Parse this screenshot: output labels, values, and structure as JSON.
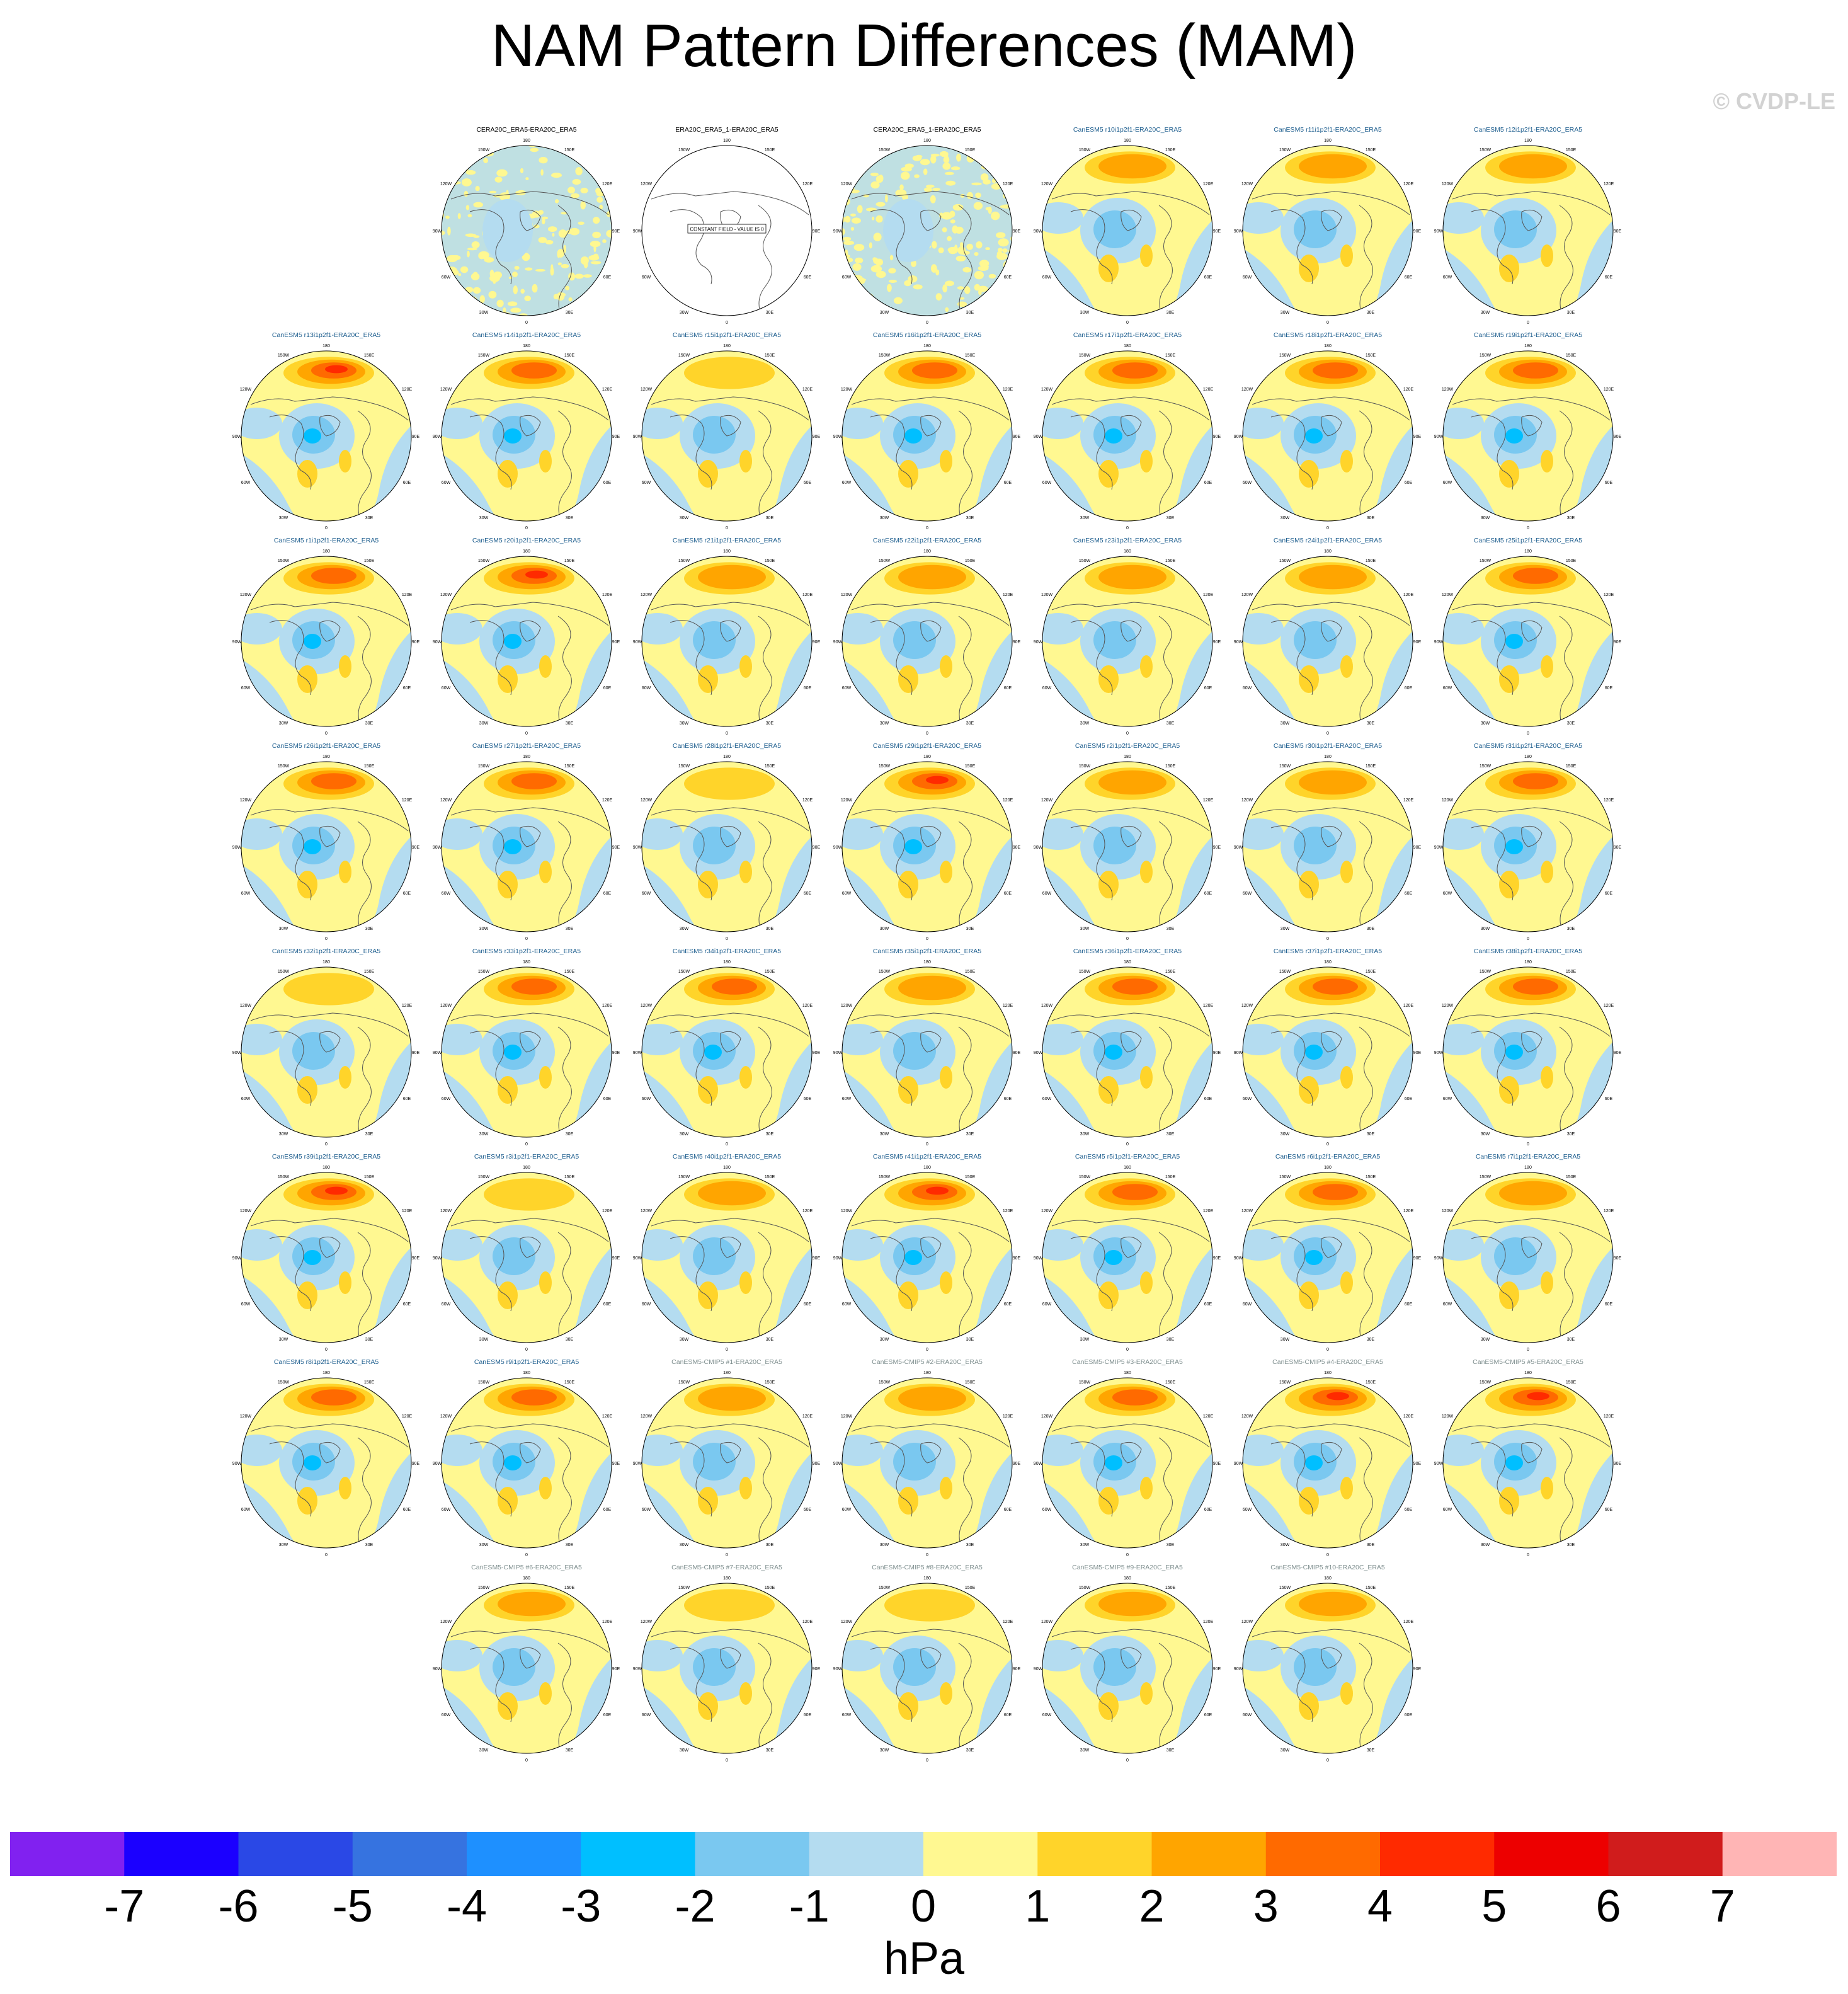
{
  "title": "NAM Pattern Differences (MAM)",
  "watermark": "© CVDP-LE",
  "colorbar": {
    "units": "hPa",
    "labels": [
      "-7",
      "-6",
      "-5",
      "-4",
      "-3",
      "-2",
      "-1",
      "0",
      "1",
      "2",
      "3",
      "4",
      "5",
      "6",
      "7"
    ],
    "colors": [
      "#8121f0",
      "#1b00ff",
      "#2a48e6",
      "#3673e0",
      "#1e90ff",
      "#00bfff",
      "#7ac8f0",
      "#b4dcf0",
      "#fff891",
      "#ffd42a",
      "#ffa500",
      "#ff6a00",
      "#ff2a00",
      "#ed0000",
      "#d01c1c",
      "#ffb5b5"
    ]
  },
  "map_labels": {
    "top": "180",
    "upper_left": "150W",
    "upper_right": "150E",
    "left_upper": "120W",
    "right_upper": "120E",
    "left_mid": "90W",
    "right_mid": "90E",
    "left_lower": "60W",
    "right_lower": "60E",
    "lower_left": "30W",
    "lower_right": "30E",
    "bottom": "0"
  },
  "constant_field_note": "CONSTANT FIELD - VALUE IS 0",
  "panel_title_colors": {
    "obs": "#000000",
    "model": "#1f5f8f",
    "cmip5": "#7f8f8f"
  },
  "panels": [
    {
      "title": "CERA20C_ERA5-ERA20C_ERA5",
      "kind": "obs",
      "variant": "noisy",
      "intensity": 0
    },
    {
      "title": "ERA20C_ERA5_1-ERA20C_ERA5",
      "kind": "obs",
      "variant": "constant",
      "intensity": 0
    },
    {
      "title": "CERA20C_ERA5_1-ERA20C_ERA5",
      "kind": "obs",
      "variant": "noisy",
      "intensity": 0
    },
    {
      "title": "CanESM5 r10i1p2f1-ERA20C_ERA5",
      "kind": "model",
      "variant": "normal",
      "intensity": 2
    },
    {
      "title": "CanESM5 r11i1p2f1-ERA20C_ERA5",
      "kind": "model",
      "variant": "normal",
      "intensity": 2
    },
    {
      "title": "CanESM5 r12i1p2f1-ERA20C_ERA5",
      "kind": "model",
      "variant": "normal",
      "intensity": 2
    },
    {
      "title": "CanESM5 r13i1p2f1-ERA20C_ERA5",
      "kind": "model",
      "variant": "normal",
      "intensity": 4
    },
    {
      "title": "CanESM5 r14i1p2f1-ERA20C_ERA5",
      "kind": "model",
      "variant": "normal",
      "intensity": 3
    },
    {
      "title": "CanESM5 r15i1p2f1-ERA20C_ERA5",
      "kind": "model",
      "variant": "normal",
      "intensity": 1
    },
    {
      "title": "CanESM5 r16i1p2f1-ERA20C_ERA5",
      "kind": "model",
      "variant": "normal",
      "intensity": 3
    },
    {
      "title": "CanESM5 r17i1p2f1-ERA20C_ERA5",
      "kind": "model",
      "variant": "normal",
      "intensity": 3
    },
    {
      "title": "CanESM5 r18i1p2f1-ERA20C_ERA5",
      "kind": "model",
      "variant": "normal",
      "intensity": 3
    },
    {
      "title": "CanESM5 r19i1p2f1-ERA20C_ERA5",
      "kind": "model",
      "variant": "normal",
      "intensity": 3
    },
    {
      "title": "CanESM5 r1i1p2f1-ERA20C_ERA5",
      "kind": "model",
      "variant": "normal",
      "intensity": 3
    },
    {
      "title": "CanESM5 r20i1p2f1-ERA20C_ERA5",
      "kind": "model",
      "variant": "normal",
      "intensity": 4
    },
    {
      "title": "CanESM5 r21i1p2f1-ERA20C_ERA5",
      "kind": "model",
      "variant": "normal",
      "intensity": 2
    },
    {
      "title": "CanESM5 r22i1p2f1-ERA20C_ERA5",
      "kind": "model",
      "variant": "normal",
      "intensity": 2
    },
    {
      "title": "CanESM5 r23i1p2f1-ERA20C_ERA5",
      "kind": "model",
      "variant": "normal",
      "intensity": 2
    },
    {
      "title": "CanESM5 r24i1p2f1-ERA20C_ERA5",
      "kind": "model",
      "variant": "normal",
      "intensity": 2
    },
    {
      "title": "CanESM5 r25i1p2f1-ERA20C_ERA5",
      "kind": "model",
      "variant": "normal",
      "intensity": 3
    },
    {
      "title": "CanESM5 r26i1p2f1-ERA20C_ERA5",
      "kind": "model",
      "variant": "normal",
      "intensity": 3
    },
    {
      "title": "CanESM5 r27i1p2f1-ERA20C_ERA5",
      "kind": "model",
      "variant": "normal",
      "intensity": 3
    },
    {
      "title": "CanESM5 r28i1p2f1-ERA20C_ERA5",
      "kind": "model",
      "variant": "normal",
      "intensity": 1
    },
    {
      "title": "CanESM5 r29i1p2f1-ERA20C_ERA5",
      "kind": "model",
      "variant": "normal",
      "intensity": 4
    },
    {
      "title": "CanESM5 r2i1p2f1-ERA20C_ERA5",
      "kind": "model",
      "variant": "normal",
      "intensity": 2
    },
    {
      "title": "CanESM5 r30i1p2f1-ERA20C_ERA5",
      "kind": "model",
      "variant": "normal",
      "intensity": 2
    },
    {
      "title": "CanESM5 r31i1p2f1-ERA20C_ERA5",
      "kind": "model",
      "variant": "normal",
      "intensity": 3
    },
    {
      "title": "CanESM5 r32i1p2f1-ERA20C_ERA5",
      "kind": "model",
      "variant": "normal",
      "intensity": 1
    },
    {
      "title": "CanESM5 r33i1p2f1-ERA20C_ERA5",
      "kind": "model",
      "variant": "normal",
      "intensity": 3
    },
    {
      "title": "CanESM5 r34i1p2f1-ERA20C_ERA5",
      "kind": "model",
      "variant": "normal",
      "intensity": 3
    },
    {
      "title": "CanESM5 r35i1p2f1-ERA20C_ERA5",
      "kind": "model",
      "variant": "normal",
      "intensity": 2
    },
    {
      "title": "CanESM5 r36i1p2f1-ERA20C_ERA5",
      "kind": "model",
      "variant": "normal",
      "intensity": 3
    },
    {
      "title": "CanESM5 r37i1p2f1-ERA20C_ERA5",
      "kind": "model",
      "variant": "normal",
      "intensity": 3
    },
    {
      "title": "CanESM5 r38i1p2f1-ERA20C_ERA5",
      "kind": "model",
      "variant": "normal",
      "intensity": 3
    },
    {
      "title": "CanESM5 r39i1p2f1-ERA20C_ERA5",
      "kind": "model",
      "variant": "normal",
      "intensity": 4
    },
    {
      "title": "CanESM5 r3i1p2f1-ERA20C_ERA5",
      "kind": "model",
      "variant": "normal",
      "intensity": 1
    },
    {
      "title": "CanESM5 r40i1p2f1-ERA20C_ERA5",
      "kind": "model",
      "variant": "normal",
      "intensity": 2
    },
    {
      "title": "CanESM5 r41i1p2f1-ERA20C_ERA5",
      "kind": "model",
      "variant": "normal",
      "intensity": 4
    },
    {
      "title": "CanESM5 r5i1p2f1-ERA20C_ERA5",
      "kind": "model",
      "variant": "normal",
      "intensity": 3
    },
    {
      "title": "CanESM5 r6i1p2f1-ERA20C_ERA5",
      "kind": "model",
      "variant": "normal",
      "intensity": 3
    },
    {
      "title": "CanESM5 r7i1p2f1-ERA20C_ERA5",
      "kind": "model",
      "variant": "normal",
      "intensity": 2
    },
    {
      "title": "CanESM5 r8i1p2f1-ERA20C_ERA5",
      "kind": "model",
      "variant": "normal",
      "intensity": 3
    },
    {
      "title": "CanESM5 r9i1p2f1-ERA20C_ERA5",
      "kind": "model",
      "variant": "normal",
      "intensity": 3
    },
    {
      "title": "CanESM5-CMIP5 #1-ERA20C_ERA5",
      "kind": "cmip5",
      "variant": "normal",
      "intensity": 2
    },
    {
      "title": "CanESM5-CMIP5 #2-ERA20C_ERA5",
      "kind": "cmip5",
      "variant": "normal",
      "intensity": 2
    },
    {
      "title": "CanESM5-CMIP5 #3-ERA20C_ERA5",
      "kind": "cmip5",
      "variant": "normal",
      "intensity": 3
    },
    {
      "title": "CanESM5-CMIP5 #4-ERA20C_ERA5",
      "kind": "cmip5",
      "variant": "normal",
      "intensity": 4
    },
    {
      "title": "CanESM5-CMIP5 #5-ERA20C_ERA5",
      "kind": "cmip5",
      "variant": "normal",
      "intensity": 4
    },
    {
      "title": "CanESM5-CMIP5 #6-ERA20C_ERA5",
      "kind": "cmip5",
      "variant": "normal",
      "intensity": 2
    },
    {
      "title": "CanESM5-CMIP5 #7-ERA20C_ERA5",
      "kind": "cmip5",
      "variant": "normal",
      "intensity": 1
    },
    {
      "title": "CanESM5-CMIP5 #8-ERA20C_ERA5",
      "kind": "cmip5",
      "variant": "normal",
      "intensity": 1
    },
    {
      "title": "CanESM5-CMIP5 #9-ERA20C_ERA5",
      "kind": "cmip5",
      "variant": "normal",
      "intensity": 2
    },
    {
      "title": "CanESM5-CMIP5 #10-ERA20C_ERA5",
      "kind": "cmip5",
      "variant": "normal",
      "intensity": 2
    }
  ]
}
